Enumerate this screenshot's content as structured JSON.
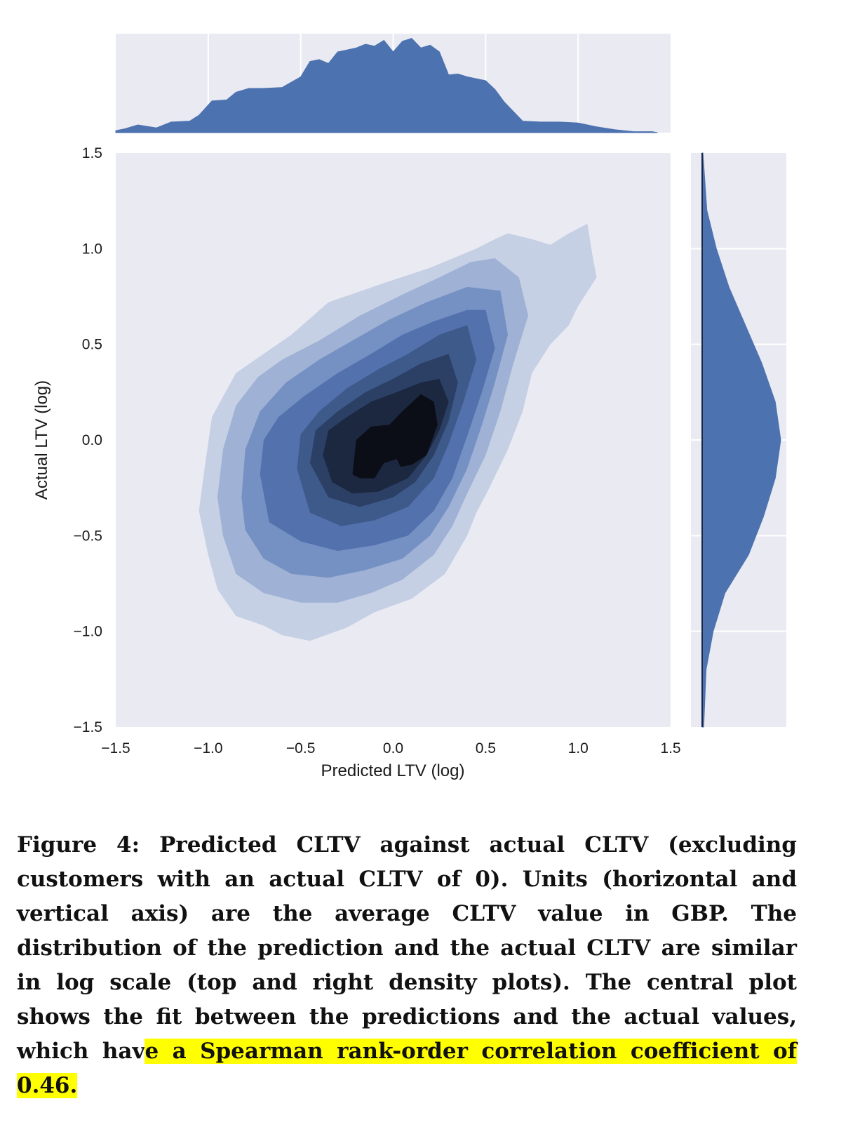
{
  "chart_data": {
    "type": "kde-jointplot",
    "xlabel": "Predicted LTV (log)",
    "ylabel": "Actual LTV (log)",
    "xlim": [
      -1.5,
      1.5
    ],
    "ylim": [
      -1.5,
      1.5
    ],
    "x_ticks": [
      "−1.5",
      "−1.0",
      "−0.5",
      "0.0",
      "0.5",
      "1.0",
      "1.5"
    ],
    "y_ticks": [
      "−1.5",
      "−1.0",
      "−0.5",
      "0.0",
      "0.5",
      "1.0",
      "1.5"
    ],
    "grid": true,
    "colors": {
      "background": "#eaeaf2",
      "fill": "#4c72b0",
      "grid": "#ffffff",
      "contour_levels": [
        "#c5d0e5",
        "#9fb1d4",
        "#7591c4",
        "#5372ad",
        "#3e5a8b",
        "#2c4066",
        "#1c2740",
        "#0b0e16"
      ]
    },
    "joint_contours": [
      {
        "level": 1,
        "points": [
          [
            -1.05,
            -0.37
          ],
          [
            -1.02,
            -0.15
          ],
          [
            -0.98,
            0.12
          ],
          [
            -0.85,
            0.35
          ],
          [
            -0.7,
            0.45
          ],
          [
            -0.55,
            0.55
          ],
          [
            -0.35,
            0.72
          ],
          [
            -0.05,
            0.82
          ],
          [
            0.2,
            0.9
          ],
          [
            0.45,
            1.0
          ],
          [
            0.55,
            1.05
          ],
          [
            0.62,
            1.08
          ],
          [
            0.75,
            1.05
          ],
          [
            0.85,
            1.02
          ],
          [
            0.95,
            1.08
          ],
          [
            1.05,
            1.13
          ],
          [
            1.08,
            0.95
          ],
          [
            1.1,
            0.85
          ],
          [
            1.0,
            0.7
          ],
          [
            0.95,
            0.6
          ],
          [
            0.85,
            0.5
          ],
          [
            0.75,
            0.35
          ],
          [
            0.7,
            0.15
          ],
          [
            0.62,
            -0.05
          ],
          [
            0.52,
            -0.25
          ],
          [
            0.45,
            -0.38
          ],
          [
            0.4,
            -0.5
          ],
          [
            0.28,
            -0.7
          ],
          [
            0.1,
            -0.83
          ],
          [
            -0.1,
            -0.9
          ],
          [
            -0.25,
            -0.98
          ],
          [
            -0.45,
            -1.05
          ],
          [
            -0.6,
            -1.02
          ],
          [
            -0.7,
            -0.97
          ],
          [
            -0.85,
            -0.92
          ],
          [
            -0.95,
            -0.78
          ],
          [
            -1.0,
            -0.6
          ]
        ]
      },
      {
        "level": 2,
        "points": [
          [
            -0.95,
            -0.3
          ],
          [
            -0.92,
            -0.05
          ],
          [
            -0.85,
            0.18
          ],
          [
            -0.73,
            0.33
          ],
          [
            -0.6,
            0.42
          ],
          [
            -0.4,
            0.52
          ],
          [
            -0.18,
            0.65
          ],
          [
            0.05,
            0.76
          ],
          [
            0.25,
            0.85
          ],
          [
            0.42,
            0.93
          ],
          [
            0.55,
            0.95
          ],
          [
            0.68,
            0.85
          ],
          [
            0.73,
            0.65
          ],
          [
            0.65,
            0.4
          ],
          [
            0.58,
            0.15
          ],
          [
            0.5,
            -0.08
          ],
          [
            0.4,
            -0.28
          ],
          [
            0.32,
            -0.45
          ],
          [
            0.22,
            -0.6
          ],
          [
            0.05,
            -0.73
          ],
          [
            -0.12,
            -0.8
          ],
          [
            -0.3,
            -0.85
          ],
          [
            -0.5,
            -0.85
          ],
          [
            -0.7,
            -0.8
          ],
          [
            -0.85,
            -0.7
          ],
          [
            -0.92,
            -0.5
          ]
        ]
      },
      {
        "level": 3,
        "points": [
          [
            -0.82,
            -0.3
          ],
          [
            -0.8,
            -0.05
          ],
          [
            -0.72,
            0.15
          ],
          [
            -0.58,
            0.3
          ],
          [
            -0.4,
            0.42
          ],
          [
            -0.22,
            0.52
          ],
          [
            -0.02,
            0.63
          ],
          [
            0.18,
            0.72
          ],
          [
            0.4,
            0.8
          ],
          [
            0.58,
            0.78
          ],
          [
            0.62,
            0.55
          ],
          [
            0.55,
            0.3
          ],
          [
            0.48,
            0.08
          ],
          [
            0.4,
            -0.15
          ],
          [
            0.3,
            -0.35
          ],
          [
            0.2,
            -0.5
          ],
          [
            0.05,
            -0.62
          ],
          [
            -0.15,
            -0.68
          ],
          [
            -0.35,
            -0.72
          ],
          [
            -0.55,
            -0.7
          ],
          [
            -0.7,
            -0.62
          ],
          [
            -0.8,
            -0.47
          ]
        ]
      },
      {
        "level": 4,
        "points": [
          [
            -0.72,
            -0.18
          ],
          [
            -0.7,
            0.0
          ],
          [
            -0.62,
            0.12
          ],
          [
            -0.48,
            0.23
          ],
          [
            -0.3,
            0.35
          ],
          [
            -0.12,
            0.45
          ],
          [
            0.05,
            0.55
          ],
          [
            0.22,
            0.62
          ],
          [
            0.4,
            0.68
          ],
          [
            0.5,
            0.68
          ],
          [
            0.55,
            0.48
          ],
          [
            0.48,
            0.25
          ],
          [
            0.4,
            0.02
          ],
          [
            0.32,
            -0.2
          ],
          [
            0.22,
            -0.37
          ],
          [
            0.08,
            -0.5
          ],
          [
            -0.1,
            -0.55
          ],
          [
            -0.3,
            -0.58
          ],
          [
            -0.5,
            -0.53
          ],
          [
            -0.67,
            -0.43
          ]
        ]
      },
      {
        "level": 5,
        "points": [
          [
            -0.52,
            -0.15
          ],
          [
            -0.5,
            0.03
          ],
          [
            -0.4,
            0.15
          ],
          [
            -0.25,
            0.27
          ],
          [
            -0.08,
            0.37
          ],
          [
            0.08,
            0.45
          ],
          [
            0.25,
            0.55
          ],
          [
            0.4,
            0.6
          ],
          [
            0.45,
            0.42
          ],
          [
            0.38,
            0.2
          ],
          [
            0.3,
            -0.02
          ],
          [
            0.22,
            -0.2
          ],
          [
            0.08,
            -0.35
          ],
          [
            -0.1,
            -0.42
          ],
          [
            -0.28,
            -0.45
          ],
          [
            -0.45,
            -0.38
          ]
        ]
      },
      {
        "level": 6,
        "points": [
          [
            -0.45,
            -0.12
          ],
          [
            -0.42,
            0.05
          ],
          [
            -0.3,
            0.15
          ],
          [
            -0.15,
            0.25
          ],
          [
            0.0,
            0.32
          ],
          [
            0.15,
            0.4
          ],
          [
            0.3,
            0.45
          ],
          [
            0.35,
            0.3
          ],
          [
            0.3,
            0.1
          ],
          [
            0.22,
            -0.08
          ],
          [
            0.12,
            -0.22
          ],
          [
            0.0,
            -0.3
          ],
          [
            -0.18,
            -0.35
          ],
          [
            -0.35,
            -0.3
          ]
        ]
      },
      {
        "level": 7,
        "points": [
          [
            -0.38,
            -0.08
          ],
          [
            -0.35,
            0.05
          ],
          [
            -0.25,
            0.12
          ],
          [
            -0.12,
            0.2
          ],
          [
            0.02,
            0.25
          ],
          [
            0.15,
            0.3
          ],
          [
            0.25,
            0.32
          ],
          [
            0.3,
            0.2
          ],
          [
            0.25,
            0.05
          ],
          [
            0.18,
            -0.08
          ],
          [
            0.08,
            -0.2
          ],
          [
            -0.08,
            -0.27
          ],
          [
            -0.22,
            -0.28
          ],
          [
            -0.33,
            -0.22
          ]
        ]
      },
      {
        "level": 8,
        "points": [
          [
            -0.22,
            -0.18
          ],
          [
            -0.2,
            0.0
          ],
          [
            -0.12,
            0.07
          ],
          [
            -0.02,
            0.08
          ],
          [
            0.05,
            0.15
          ],
          [
            0.15,
            0.24
          ],
          [
            0.22,
            0.2
          ],
          [
            0.24,
            0.08
          ],
          [
            0.18,
            -0.08
          ],
          [
            0.1,
            -0.13
          ],
          [
            0.04,
            -0.14
          ],
          [
            0.02,
            -0.1
          ],
          [
            -0.05,
            -0.12
          ],
          [
            -0.1,
            -0.2
          ],
          [
            -0.18,
            -0.2
          ]
        ]
      }
    ],
    "top_density": {
      "x": [
        -1.5,
        -1.45,
        -1.38,
        -1.28,
        -1.2,
        -1.1,
        -1.05,
        -0.98,
        -0.9,
        -0.85,
        -0.78,
        -0.7,
        -0.6,
        -0.5,
        -0.45,
        -0.4,
        -0.35,
        -0.3,
        -0.25,
        -0.2,
        -0.15,
        -0.1,
        -0.05,
        0.0,
        0.05,
        0.1,
        0.15,
        0.2,
        0.25,
        0.3,
        0.35,
        0.4,
        0.5,
        0.55,
        0.6,
        0.7,
        0.8,
        0.9,
        1.0,
        1.1,
        1.2,
        1.3,
        1.4,
        1.43
      ],
      "y": [
        0.02,
        0.04,
        0.08,
        0.05,
        0.11,
        0.12,
        0.18,
        0.33,
        0.34,
        0.42,
        0.46,
        0.46,
        0.47,
        0.58,
        0.74,
        0.76,
        0.72,
        0.84,
        0.86,
        0.88,
        0.92,
        0.9,
        0.96,
        0.84,
        0.95,
        0.98,
        0.88,
        0.91,
        0.84,
        0.6,
        0.61,
        0.58,
        0.54,
        0.45,
        0.32,
        0.12,
        0.11,
        0.11,
        0.1,
        0.06,
        0.03,
        0.01,
        0.01,
        0.0
      ]
    },
    "right_density": {
      "y": [
        1.5,
        1.2,
        1.0,
        0.8,
        0.6,
        0.4,
        0.2,
        0.0,
        -0.2,
        -0.4,
        -0.6,
        -0.8,
        -1.0,
        -1.2,
        -1.5
      ],
      "x": [
        0.01,
        0.06,
        0.18,
        0.34,
        0.55,
        0.76,
        0.93,
        1.0,
        0.93,
        0.78,
        0.59,
        0.29,
        0.14,
        0.05,
        0.02
      ]
    }
  },
  "caption": {
    "text": "Figure 4: Predicted CLTV against actual CLTV (excluding customers with an actual CLTV of 0). Units (horizontal and vertical axis) are the average CLTV value in GBP. The distribution of the prediction and the actual CLTV are similar in log scale (top and right density plots). The central plot shows the fit between the predictions and the actual values, which hav",
    "highlighted": "e a Spearman rank-order correlation coefficient of 0.46."
  }
}
